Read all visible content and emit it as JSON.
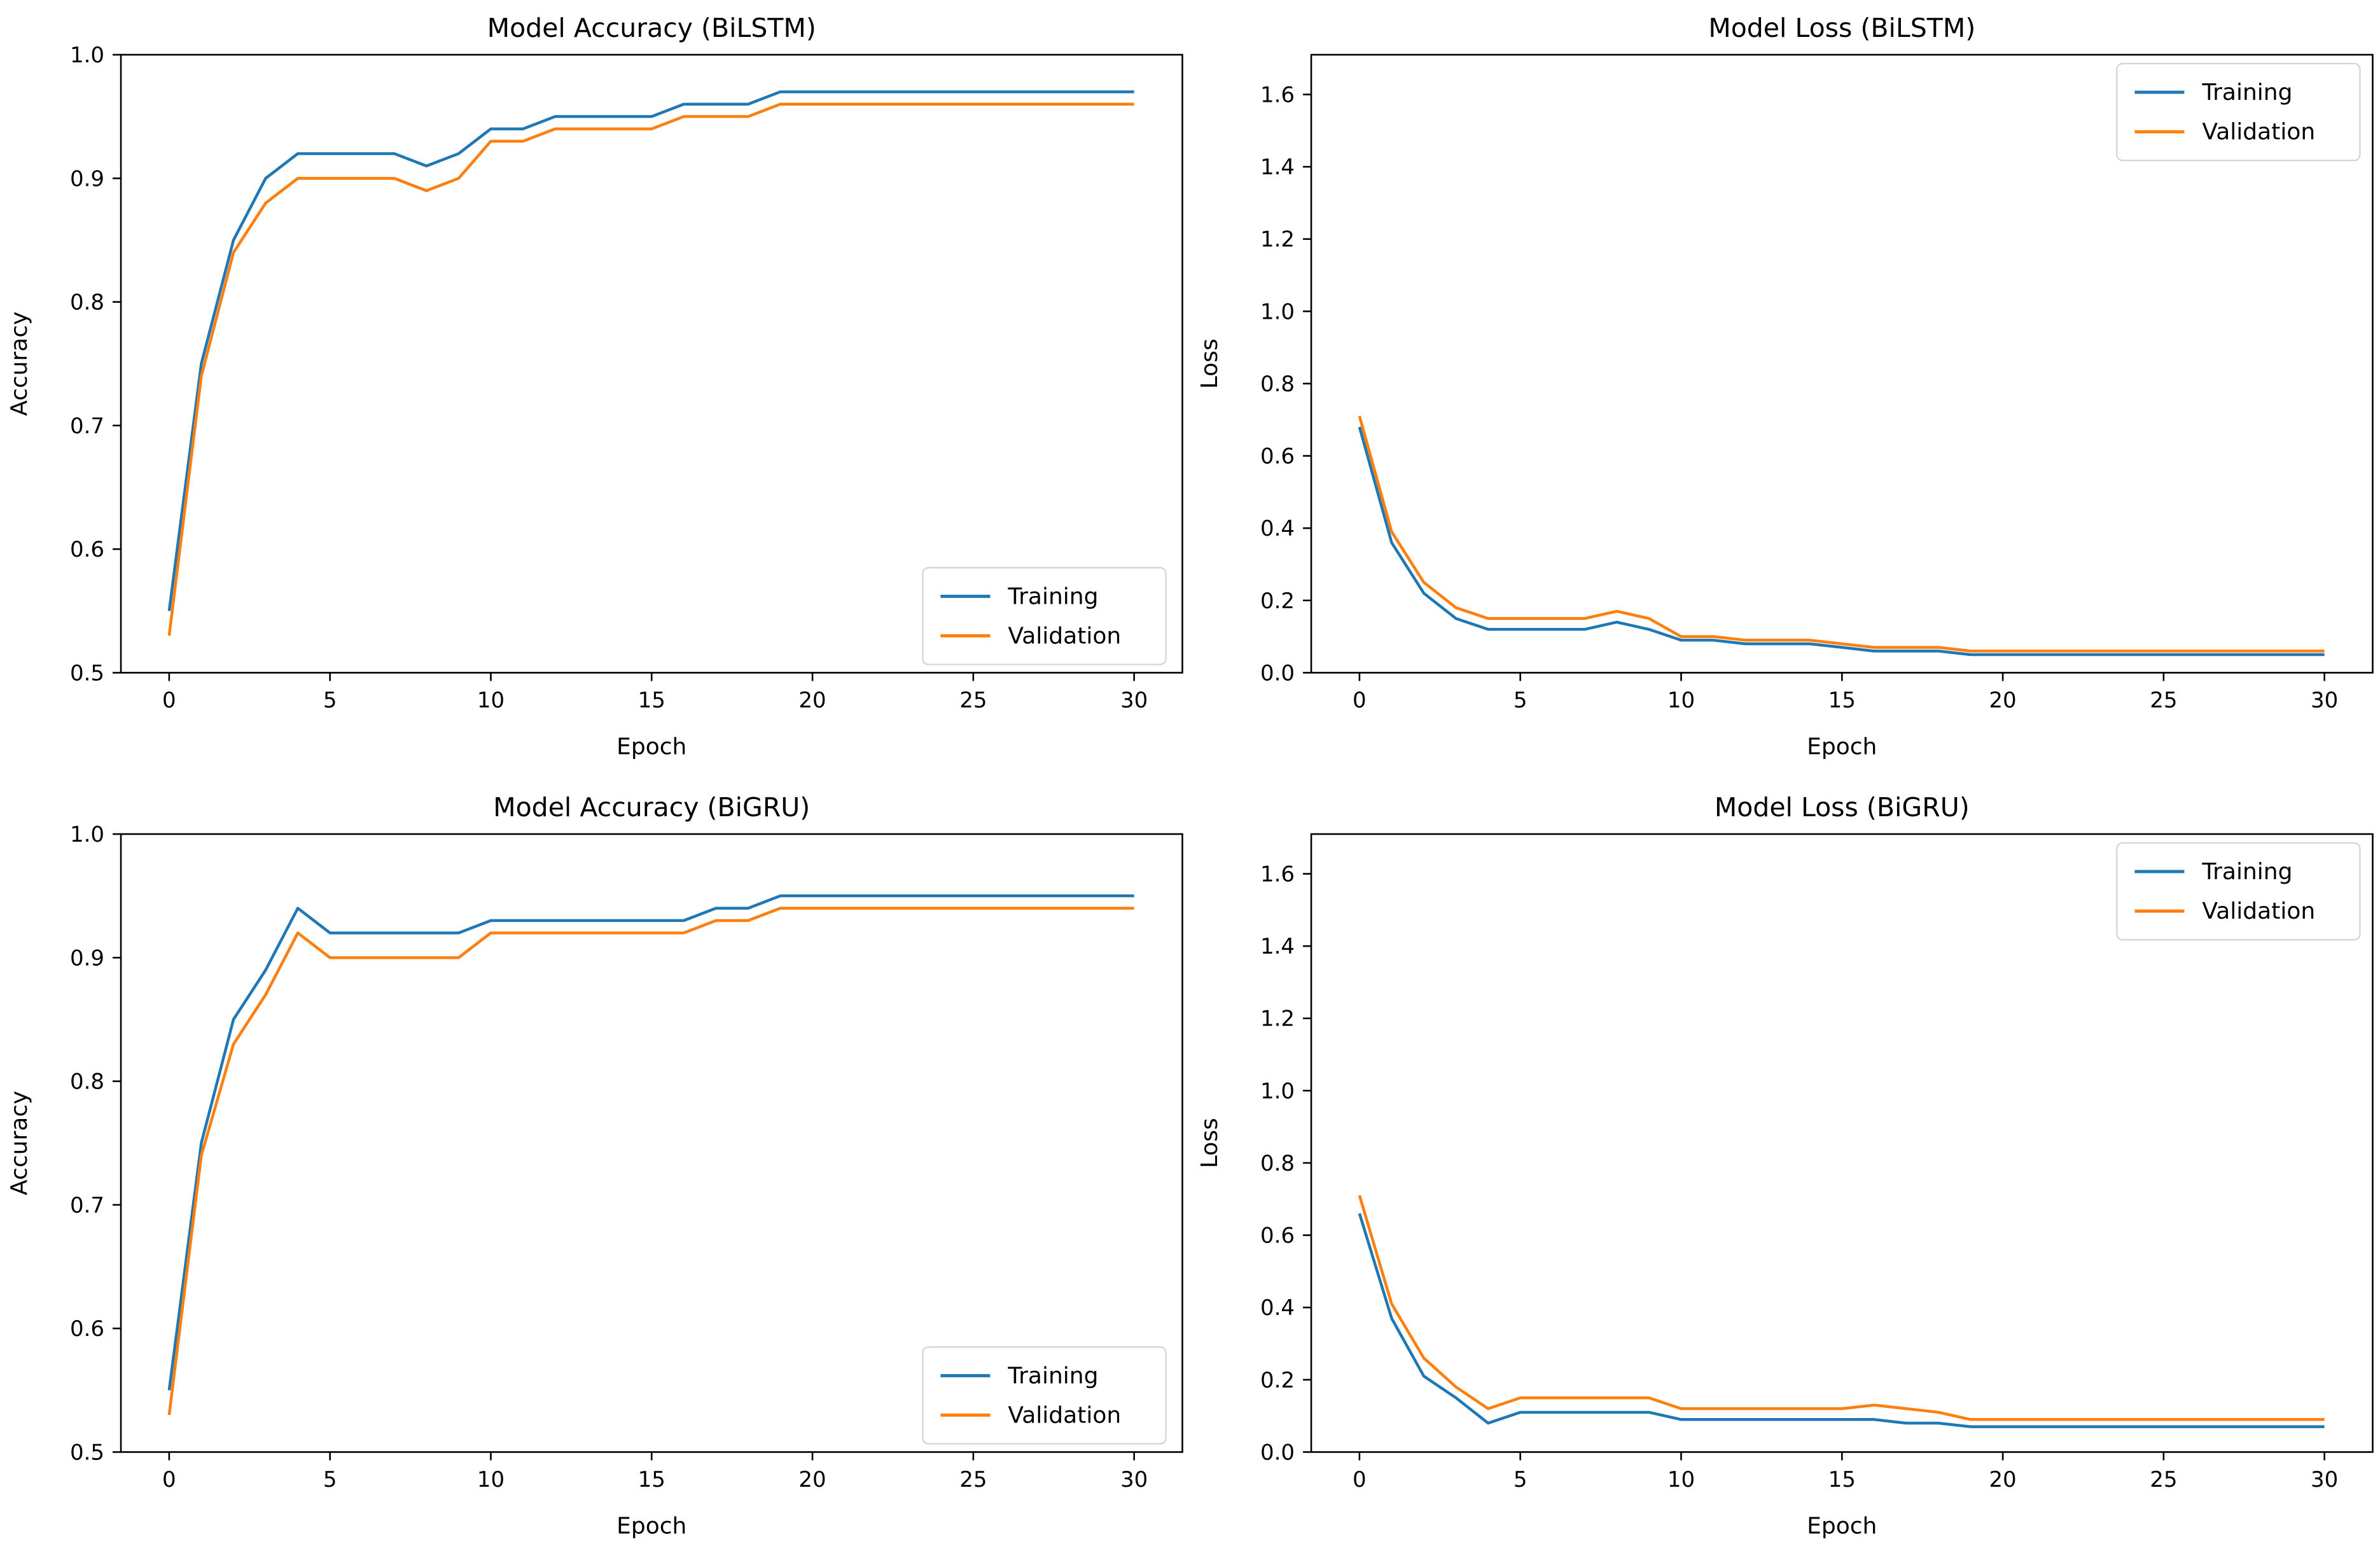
{
  "figure": {
    "background": "#ffffff",
    "rows": 2,
    "cols": 2
  },
  "colors": {
    "training": "#1f77b4",
    "validation": "#ff7f0e",
    "axis": "#000000",
    "tick_label": "#000000",
    "legend_border": "#d3d3d3",
    "legend_background": "#ffffff"
  },
  "legend_labels": {
    "training": "Training",
    "validation": "Validation"
  },
  "epochs": [
    0,
    1,
    2,
    3,
    4,
    5,
    6,
    7,
    8,
    9,
    10,
    11,
    12,
    13,
    14,
    15,
    16,
    17,
    18,
    19,
    20,
    21,
    22,
    23,
    24,
    25,
    26,
    27,
    28,
    29,
    30
  ],
  "chart_data": [
    {
      "type": "line",
      "id": "bilstm-accuracy",
      "title": "Model Accuracy (BiLSTM)",
      "xlabel": "Epoch",
      "ylabel": "Accuracy",
      "xlim": [
        -1.5,
        31.5
      ],
      "ylim": [
        0.5,
        1.0
      ],
      "xticks": [
        0,
        5,
        10,
        15,
        20,
        25,
        30
      ],
      "xtick_labels": [
        "0",
        "5",
        "10",
        "15",
        "20",
        "25",
        "30"
      ],
      "yticks": [
        0.5,
        0.6,
        0.7,
        0.8,
        0.9,
        1.0
      ],
      "ytick_labels": [
        "0.5",
        "0.6",
        "0.7",
        "0.8",
        "0.9",
        "1.0"
      ],
      "grid": false,
      "legend_position": "lower right",
      "series": [
        {
          "name": "Training",
          "color_key": "training",
          "values": [
            0.55,
            0.75,
            0.85,
            0.9,
            0.92,
            0.92,
            0.92,
            0.92,
            0.91,
            0.92,
            0.94,
            0.94,
            0.95,
            0.95,
            0.95,
            0.95,
            0.96,
            0.96,
            0.96,
            0.97,
            0.97,
            0.97,
            0.97,
            0.97,
            0.97,
            0.97,
            0.97,
            0.97,
            0.97,
            0.97,
            0.97
          ]
        },
        {
          "name": "Validation",
          "color_key": "validation",
          "values": [
            0.53,
            0.74,
            0.84,
            0.88,
            0.9,
            0.9,
            0.9,
            0.9,
            0.89,
            0.9,
            0.93,
            0.93,
            0.94,
            0.94,
            0.94,
            0.94,
            0.95,
            0.95,
            0.95,
            0.96,
            0.96,
            0.96,
            0.96,
            0.96,
            0.96,
            0.96,
            0.96,
            0.96,
            0.96,
            0.96,
            0.96
          ]
        }
      ]
    },
    {
      "type": "line",
      "id": "bilstm-loss",
      "title": "Model Loss (BiLSTM)",
      "xlabel": "Epoch",
      "ylabel": "Loss",
      "xlim": [
        -1.5,
        31.5
      ],
      "ylim": [
        0.0,
        1.71
      ],
      "xticks": [
        0,
        5,
        10,
        15,
        20,
        25,
        30
      ],
      "xtick_labels": [
        "0",
        "5",
        "10",
        "15",
        "20",
        "25",
        "30"
      ],
      "yticks": [
        0.0,
        0.2,
        0.4,
        0.6,
        0.8,
        1.0,
        1.2,
        1.4,
        1.6
      ],
      "ytick_labels": [
        "0.0",
        "0.2",
        "0.4",
        "0.6",
        "0.8",
        "1.0",
        "1.2",
        "1.4",
        "1.6"
      ],
      "grid": false,
      "legend_position": "upper right",
      "series": [
        {
          "name": "Training",
          "color_key": "training",
          "values": [
            0.68,
            0.36,
            0.22,
            0.15,
            0.12,
            0.12,
            0.12,
            0.12,
            0.14,
            0.12,
            0.09,
            0.09,
            0.08,
            0.08,
            0.08,
            0.07,
            0.06,
            0.06,
            0.06,
            0.05,
            0.05,
            0.05,
            0.05,
            0.05,
            0.05,
            0.05,
            0.05,
            0.05,
            0.05,
            0.05,
            0.05
          ]
        },
        {
          "name": "Validation",
          "color_key": "validation",
          "values": [
            0.71,
            0.39,
            0.25,
            0.18,
            0.15,
            0.15,
            0.15,
            0.15,
            0.17,
            0.15,
            0.1,
            0.1,
            0.09,
            0.09,
            0.09,
            0.08,
            0.07,
            0.07,
            0.07,
            0.06,
            0.06,
            0.06,
            0.06,
            0.06,
            0.06,
            0.06,
            0.06,
            0.06,
            0.06,
            0.06,
            0.06
          ]
        }
      ]
    },
    {
      "type": "line",
      "id": "bigru-accuracy",
      "title": "Model Accuracy (BiGRU)",
      "xlabel": "Epoch",
      "ylabel": "Accuracy",
      "xlim": [
        -1.5,
        31.5
      ],
      "ylim": [
        0.5,
        1.0
      ],
      "xticks": [
        0,
        5,
        10,
        15,
        20,
        25,
        30
      ],
      "xtick_labels": [
        "0",
        "5",
        "10",
        "15",
        "20",
        "25",
        "30"
      ],
      "yticks": [
        0.5,
        0.6,
        0.7,
        0.8,
        0.9,
        1.0
      ],
      "ytick_labels": [
        "0.5",
        "0.6",
        "0.7",
        "0.8",
        "0.9",
        "1.0"
      ],
      "grid": false,
      "legend_position": "lower right",
      "series": [
        {
          "name": "Training",
          "color_key": "training",
          "values": [
            0.55,
            0.75,
            0.85,
            0.89,
            0.94,
            0.92,
            0.92,
            0.92,
            0.92,
            0.92,
            0.93,
            0.93,
            0.93,
            0.93,
            0.93,
            0.93,
            0.93,
            0.94,
            0.94,
            0.95,
            0.95,
            0.95,
            0.95,
            0.95,
            0.95,
            0.95,
            0.95,
            0.95,
            0.95,
            0.95,
            0.95
          ]
        },
        {
          "name": "Validation",
          "color_key": "validation",
          "values": [
            0.53,
            0.74,
            0.83,
            0.87,
            0.92,
            0.9,
            0.9,
            0.9,
            0.9,
            0.9,
            0.92,
            0.92,
            0.92,
            0.92,
            0.92,
            0.92,
            0.92,
            0.93,
            0.93,
            0.94,
            0.94,
            0.94,
            0.94,
            0.94,
            0.94,
            0.94,
            0.94,
            0.94,
            0.94,
            0.94,
            0.94
          ]
        }
      ]
    },
    {
      "type": "line",
      "id": "bigru-loss",
      "title": "Model Loss (BiGRU)",
      "xlabel": "Epoch",
      "ylabel": "Loss",
      "xlim": [
        -1.5,
        31.5
      ],
      "ylim": [
        0.0,
        1.71
      ],
      "xticks": [
        0,
        5,
        10,
        15,
        20,
        25,
        30
      ],
      "xtick_labels": [
        "0",
        "5",
        "10",
        "15",
        "20",
        "25",
        "30"
      ],
      "yticks": [
        0.0,
        0.2,
        0.4,
        0.6,
        0.8,
        1.0,
        1.2,
        1.4,
        1.6
      ],
      "ytick_labels": [
        "0.0",
        "0.2",
        "0.4",
        "0.6",
        "0.8",
        "1.0",
        "1.2",
        "1.4",
        "1.6"
      ],
      "grid": false,
      "legend_position": "upper right",
      "series": [
        {
          "name": "Training",
          "color_key": "training",
          "values": [
            0.66,
            0.37,
            0.21,
            0.15,
            0.08,
            0.11,
            0.11,
            0.11,
            0.11,
            0.11,
            0.09,
            0.09,
            0.09,
            0.09,
            0.09,
            0.09,
            0.09,
            0.08,
            0.08,
            0.07,
            0.07,
            0.07,
            0.07,
            0.07,
            0.07,
            0.07,
            0.07,
            0.07,
            0.07,
            0.07,
            0.07
          ]
        },
        {
          "name": "Validation",
          "color_key": "validation",
          "values": [
            0.71,
            0.41,
            0.26,
            0.18,
            0.12,
            0.15,
            0.15,
            0.15,
            0.15,
            0.15,
            0.12,
            0.12,
            0.12,
            0.12,
            0.12,
            0.12,
            0.13,
            0.12,
            0.11,
            0.09,
            0.09,
            0.09,
            0.09,
            0.09,
            0.09,
            0.09,
            0.09,
            0.09,
            0.09,
            0.09,
            0.09
          ]
        }
      ]
    }
  ]
}
